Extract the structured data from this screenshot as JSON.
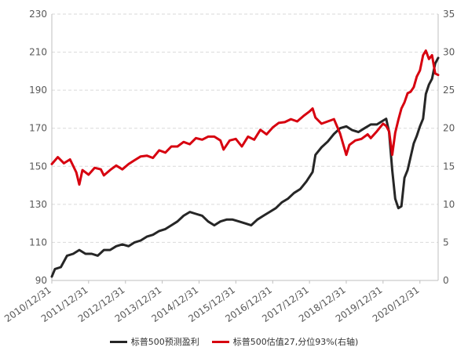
{
  "chart_data": {
    "type": "line",
    "title": "",
    "x_ticks": [
      "2010/12/31",
      "2011/12/31",
      "2012/12/31",
      "2013/12/31",
      "2014/12/31",
      "2015/12/31",
      "2016/12/31",
      "2017/12/31",
      "2018/12/31",
      "2019/12/31",
      "2020/12/31"
    ],
    "x_range": [
      "2010/12/31",
      "2021/06/30"
    ],
    "y_left": {
      "ylim": [
        90,
        230
      ],
      "ticks": [
        90,
        110,
        130,
        150,
        170,
        190,
        210,
        230
      ]
    },
    "y_right": {
      "ylim": [
        0,
        35
      ],
      "ticks": [
        0,
        5,
        10,
        15,
        20,
        25,
        30,
        35
      ]
    },
    "grid": "horizontal dashed",
    "legend_position": "bottom",
    "series": [
      {
        "name": "标普500预测盈利",
        "axis": "left",
        "color": "#262626",
        "points": [
          [
            "2010/12/31",
            92
          ],
          [
            "2011/01/31",
            96
          ],
          [
            "2011/03/31",
            97
          ],
          [
            "2011/05/31",
            103
          ],
          [
            "2011/07/31",
            104
          ],
          [
            "2011/09/30",
            106
          ],
          [
            "2011/11/30",
            104
          ],
          [
            "2012/01/31",
            104
          ],
          [
            "2012/03/31",
            103
          ],
          [
            "2012/05/31",
            106
          ],
          [
            "2012/07/31",
            106
          ],
          [
            "2012/09/30",
            108
          ],
          [
            "2012/11/30",
            109
          ],
          [
            "2013/01/31",
            108
          ],
          [
            "2013/03/31",
            110
          ],
          [
            "2013/05/31",
            111
          ],
          [
            "2013/07/31",
            113
          ],
          [
            "2013/09/30",
            114
          ],
          [
            "2013/11/30",
            116
          ],
          [
            "2014/01/31",
            117
          ],
          [
            "2014/03/31",
            119
          ],
          [
            "2014/05/31",
            121
          ],
          [
            "2014/07/31",
            124
          ],
          [
            "2014/09/30",
            126
          ],
          [
            "2014/11/30",
            125
          ],
          [
            "2015/01/31",
            124
          ],
          [
            "2015/03/31",
            121
          ],
          [
            "2015/05/31",
            119
          ],
          [
            "2015/07/31",
            121
          ],
          [
            "2015/09/30",
            122
          ],
          [
            "2015/11/30",
            122
          ],
          [
            "2016/01/31",
            121
          ],
          [
            "2016/03/31",
            120
          ],
          [
            "2016/05/31",
            119
          ],
          [
            "2016/07/31",
            122
          ],
          [
            "2016/09/30",
            124
          ],
          [
            "2016/11/30",
            126
          ],
          [
            "2017/01/31",
            128
          ],
          [
            "2017/03/31",
            131
          ],
          [
            "2017/05/31",
            133
          ],
          [
            "2017/07/31",
            136
          ],
          [
            "2017/09/30",
            138
          ],
          [
            "2017/11/30",
            142
          ],
          [
            "2018/01/31",
            147
          ],
          [
            "2018/02/28",
            156
          ],
          [
            "2018/04/30",
            160
          ],
          [
            "2018/06/30",
            163
          ],
          [
            "2018/08/31",
            167
          ],
          [
            "2018/10/31",
            170
          ],
          [
            "2018/12/31",
            171
          ],
          [
            "2019/02/28",
            169
          ],
          [
            "2019/04/30",
            168
          ],
          [
            "2019/06/30",
            170
          ],
          [
            "2019/08/31",
            172
          ],
          [
            "2019/10/31",
            172
          ],
          [
            "2019/12/31",
            174
          ],
          [
            "2020/01/31",
            175
          ],
          [
            "2020/02/29",
            168
          ],
          [
            "2020/03/31",
            148
          ],
          [
            "2020/04/30",
            133
          ],
          [
            "2020/05/31",
            128
          ],
          [
            "2020/06/30",
            129
          ],
          [
            "2020/07/31",
            144
          ],
          [
            "2020/08/31",
            148
          ],
          [
            "2020/09/30",
            155
          ],
          [
            "2020/10/31",
            162
          ],
          [
            "2020/11/30",
            166
          ],
          [
            "2020/12/31",
            171
          ],
          [
            "2021/01/31",
            175
          ],
          [
            "2021/02/28",
            188
          ],
          [
            "2021/03/31",
            193
          ],
          [
            "2021/04/30",
            196
          ],
          [
            "2021/05/31",
            204
          ],
          [
            "2021/06/30",
            207
          ]
        ]
      },
      {
        "name": "标普500估值27,分位93%(右轴)",
        "axis": "right",
        "color": "#d7000f",
        "points": [
          [
            "2010/12/31",
            15.3
          ],
          [
            "2011/02/28",
            16.2
          ],
          [
            "2011/04/30",
            15.4
          ],
          [
            "2011/06/30",
            15.9
          ],
          [
            "2011/08/31",
            14.2
          ],
          [
            "2011/09/30",
            12.6
          ],
          [
            "2011/10/31",
            14.5
          ],
          [
            "2011/12/31",
            13.9
          ],
          [
            "2012/02/29",
            14.8
          ],
          [
            "2012/04/30",
            14.6
          ],
          [
            "2012/05/31",
            13.8
          ],
          [
            "2012/07/31",
            14.5
          ],
          [
            "2012/09/30",
            15.1
          ],
          [
            "2012/11/30",
            14.6
          ],
          [
            "2013/01/31",
            15.3
          ],
          [
            "2013/03/31",
            15.8
          ],
          [
            "2013/05/31",
            16.3
          ],
          [
            "2013/07/31",
            16.4
          ],
          [
            "2013/09/30",
            16.1
          ],
          [
            "2013/11/30",
            17.1
          ],
          [
            "2014/01/31",
            16.8
          ],
          [
            "2014/03/31",
            17.6
          ],
          [
            "2014/05/31",
            17.6
          ],
          [
            "2014/07/31",
            18.2
          ],
          [
            "2014/09/30",
            17.9
          ],
          [
            "2014/11/30",
            18.7
          ],
          [
            "2015/01/31",
            18.5
          ],
          [
            "2015/03/31",
            18.9
          ],
          [
            "2015/05/31",
            18.9
          ],
          [
            "2015/07/31",
            18.4
          ],
          [
            "2015/08/31",
            17.2
          ],
          [
            "2015/10/31",
            18.4
          ],
          [
            "2015/12/31",
            18.6
          ],
          [
            "2016/02/29",
            17.6
          ],
          [
            "2016/04/30",
            18.9
          ],
          [
            "2016/06/30",
            18.5
          ],
          [
            "2016/08/31",
            19.8
          ],
          [
            "2016/10/31",
            19.2
          ],
          [
            "2016/12/31",
            20.1
          ],
          [
            "2017/02/28",
            20.7
          ],
          [
            "2017/04/30",
            20.8
          ],
          [
            "2017/06/30",
            21.2
          ],
          [
            "2017/08/31",
            20.9
          ],
          [
            "2017/10/31",
            21.6
          ],
          [
            "2017/12/31",
            22.2
          ],
          [
            "2018/01/31",
            22.6
          ],
          [
            "2018/02/28",
            21.4
          ],
          [
            "2018/04/30",
            20.6
          ],
          [
            "2018/06/30",
            20.9
          ],
          [
            "2018/08/31",
            21.2
          ],
          [
            "2018/10/31",
            19.3
          ],
          [
            "2018/12/31",
            16.5
          ],
          [
            "2019/01/31",
            17.8
          ],
          [
            "2019/03/31",
            18.4
          ],
          [
            "2019/05/31",
            18.6
          ],
          [
            "2019/07/31",
            19.2
          ],
          [
            "2019/08/31",
            18.7
          ],
          [
            "2019/10/31",
            19.6
          ],
          [
            "2019/12/31",
            20.6
          ],
          [
            "2020/01/31",
            20.3
          ],
          [
            "2020/02/29",
            19.6
          ],
          [
            "2020/03/31",
            16.5
          ],
          [
            "2020/04/30",
            19.4
          ],
          [
            "2020/05/31",
            21.1
          ],
          [
            "2020/06/30",
            22.6
          ],
          [
            "2020/07/31",
            23.4
          ],
          [
            "2020/08/31",
            24.6
          ],
          [
            "2020/09/30",
            24.8
          ],
          [
            "2020/10/31",
            25.4
          ],
          [
            "2020/11/30",
            26.8
          ],
          [
            "2020/12/31",
            27.6
          ],
          [
            "2021/01/31",
            29.6
          ],
          [
            "2021/02/28",
            30.2
          ],
          [
            "2021/03/31",
            29.1
          ],
          [
            "2021/04/30",
            29.6
          ],
          [
            "2021/05/31",
            27.2
          ],
          [
            "2021/06/30",
            27.0
          ]
        ]
      }
    ]
  },
  "legend": {
    "items": [
      {
        "label": "标普500预测盈利",
        "color": "#262626"
      },
      {
        "label": "标普500估值27,分位93%(右轴)",
        "color": "#d7000f"
      }
    ]
  }
}
